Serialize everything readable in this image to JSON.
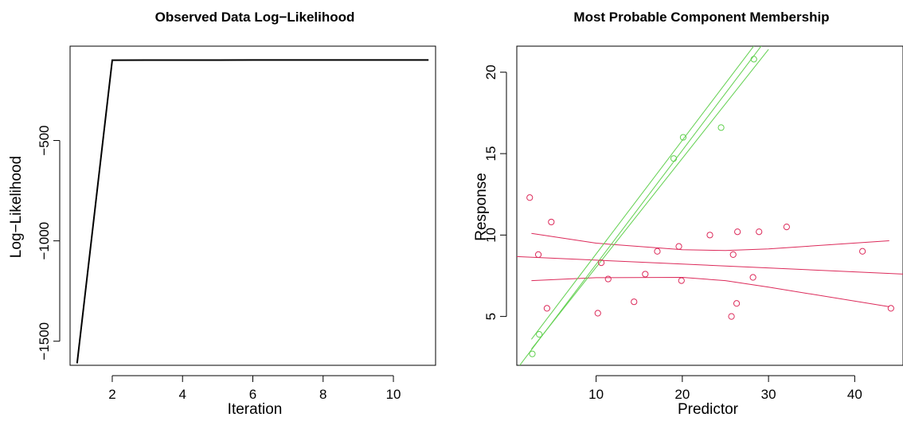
{
  "chart_data": [
    {
      "type": "line",
      "title": "Observed Data Log−Likelihood",
      "xlabel": "Iteration",
      "ylabel": "Log−Likelihood",
      "xlim": [
        0.8,
        11.2
      ],
      "ylim": [
        -1620,
        -30
      ],
      "xticks": [
        2,
        4,
        6,
        8,
        10
      ],
      "yticks": [
        -500,
        -1000,
        -1500
      ],
      "ytick_labels": [
        "−500",
        "−1000",
        "−1500"
      ],
      "x": [
        1,
        2,
        3,
        4,
        5,
        6,
        7,
        8,
        9,
        10,
        11
      ],
      "y": [
        -1610,
        -100,
        -99.5,
        -99.3,
        -99.2,
        -99.1,
        -99.05,
        -99.0,
        -98.98,
        -98.96,
        -98.95
      ],
      "color": "#000000",
      "grid": false,
      "legend": "none"
    },
    {
      "type": "scatter",
      "title": "Most Probable Component Membership",
      "xlabel": "Predictor",
      "ylabel": "Response",
      "xlim": [
        0.8,
        45.6
      ],
      "ylim": [
        2,
        21.6
      ],
      "xticks": [
        10,
        20,
        30,
        40
      ],
      "yticks": [
        5,
        10,
        15,
        20
      ],
      "grid": false,
      "legend": "none",
      "series": [
        {
          "color": "#dc2a5a",
          "x": [
            2.3,
            3.3,
            4.3,
            4.8,
            10.2,
            10.6,
            11.4,
            14.4,
            15.7,
            17.1,
            19.6,
            19.9,
            23.2,
            25.7,
            25.9,
            26.3,
            26.4,
            28.2,
            28.9,
            32.1,
            40.9,
            44.2
          ],
          "y": [
            12.3,
            8.8,
            5.5,
            10.8,
            5.2,
            8.3,
            7.3,
            5.9,
            7.6,
            9.0,
            9.3,
            7.2,
            10.0,
            5.0,
            8.8,
            5.8,
            10.2,
            7.4,
            10.2,
            10.5,
            9.0,
            5.5
          ]
        },
        {
          "color": "#61d04f",
          "x": [
            2.6,
            3.4,
            19.0,
            20.1,
            24.5,
            28.3
          ],
          "y": [
            2.7,
            3.9,
            14.7,
            16.0,
            16.6,
            20.8
          ]
        }
      ],
      "fits": [
        {
          "color": "#dc2a5a",
          "x_range": [
            0.8,
            45.6
          ],
          "intercept": 8.7,
          "slope": -0.024,
          "band_upper": [
            [
              2.5,
              10.1
            ],
            [
              10,
              9.5
            ],
            [
              20,
              9.1
            ],
            [
              25,
              9.05
            ],
            [
              30,
              9.15
            ],
            [
              44,
              9.65
            ]
          ],
          "band_lower": [
            [
              2.5,
              7.2
            ],
            [
              10,
              7.38
            ],
            [
              20,
              7.4
            ],
            [
              25,
              7.2
            ],
            [
              30,
              6.8
            ],
            [
              44,
              5.6
            ]
          ]
        },
        {
          "color": "#61d04f",
          "x_range": [
            0.8,
            30.2
          ],
          "intercept": 1.2,
          "slope": 0.7,
          "band_upper": [
            [
              2.5,
              3.6
            ],
            [
              30,
              22.8
            ]
          ],
          "band_lower": [
            [
              2.5,
              3.0
            ],
            [
              30,
              21.4
            ]
          ]
        }
      ]
    }
  ]
}
